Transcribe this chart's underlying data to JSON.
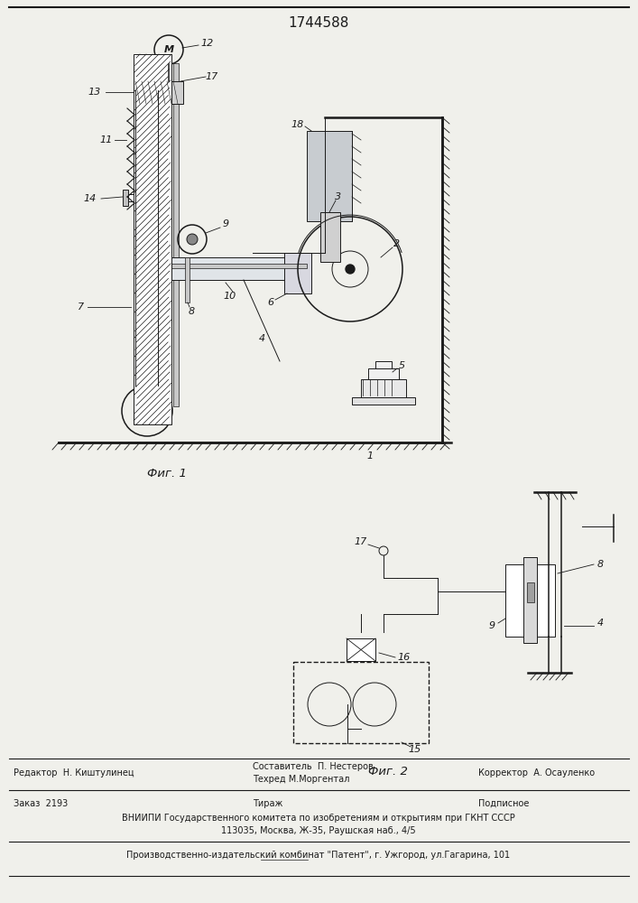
{
  "title": "1744588",
  "bg_color": "#f0f0eb",
  "line_color": "#1a1a1a",
  "fig1_label": "Фиг. 1",
  "fig2_label": "Фиг. 2",
  "footer_line1_left": "Редактор  Н. Киштулинец",
  "footer_line1_center1": "Составитель  П. Нестеров",
  "footer_line1_center2": "Техред М.Моргентал",
  "footer_line1_right": "Корректор  А. Осауленко",
  "footer_line2_left": "Заказ  2193",
  "footer_line2_center": "Тираж",
  "footer_line2_right": "Подписное",
  "footer_line3": "ВНИИПИ Государственного комитета по изобретениям и открытиям при ГКНТ СССР",
  "footer_line4": "113035, Москва, Ж-35, Раушская наб., 4/5",
  "footer_line5": "Производственно-издательский комбинат \"Патент\", г. Ужгород, ул.Гагарина, 101"
}
